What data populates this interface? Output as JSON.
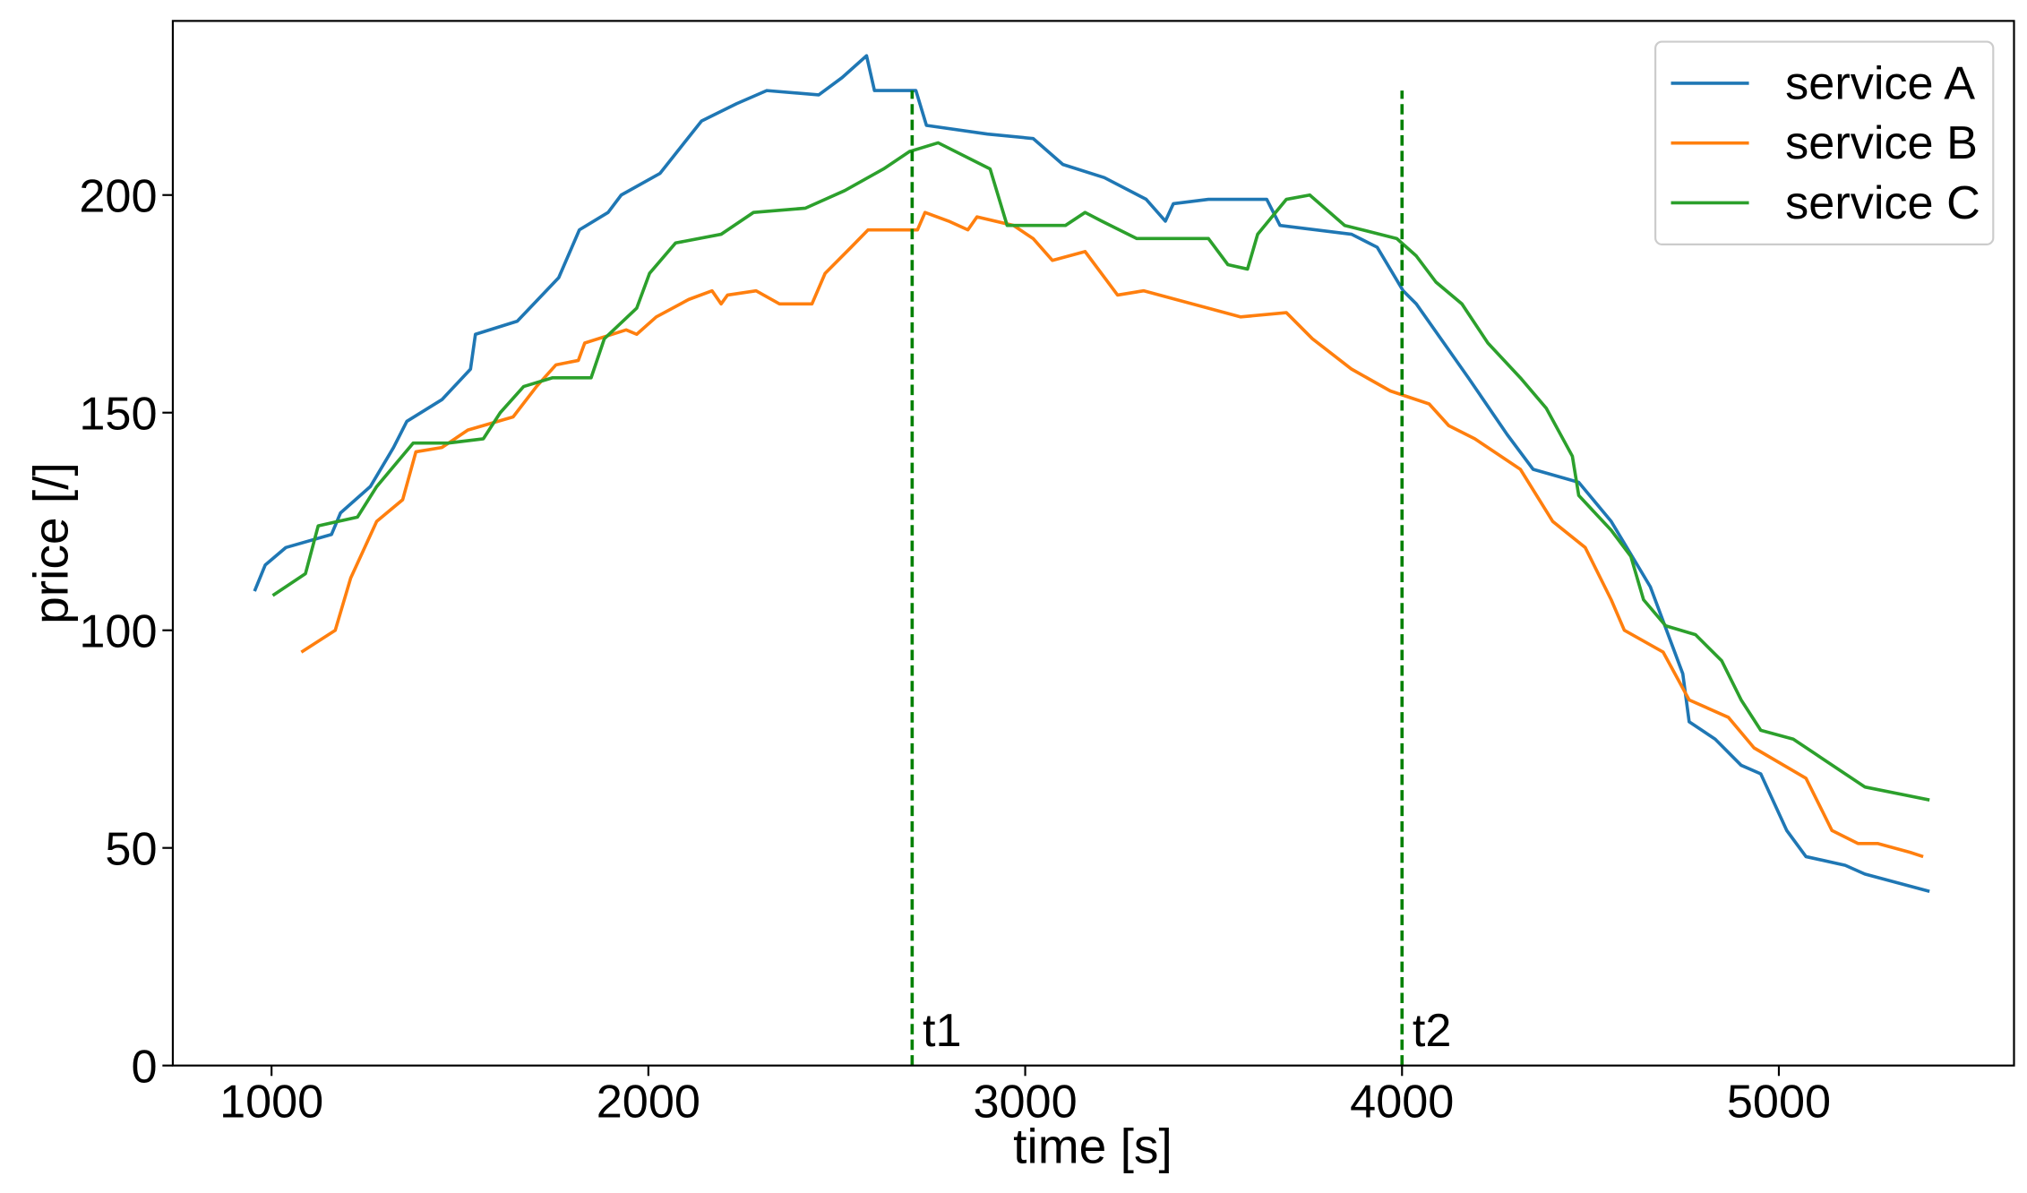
{
  "chart_data": {
    "type": "line",
    "xlabel": "time [s]",
    "ylabel": "price [/]",
    "xlim": [
      738,
      5624
    ],
    "ylim": [
      0,
      240
    ],
    "xticks": [
      1000,
      2000,
      3000,
      4000,
      5000
    ],
    "yticks": [
      0,
      50,
      100,
      150,
      200
    ],
    "legend": "upper right",
    "series": [
      {
        "name": "service A",
        "color": "#1f77b4",
        "x": [
          955,
          983,
          1038,
          1159,
          1183,
          1262,
          1324,
          1359,
          1452,
          1528,
          1541,
          1652,
          1762,
          1817,
          1893,
          1928,
          2031,
          2141,
          2234,
          2314,
          2452,
          2514,
          2579,
          2600,
          2710,
          2738,
          2900,
          3021,
          3100,
          3210,
          3321,
          3372,
          3393,
          3486,
          3641,
          3676,
          3866,
          3934,
          4003,
          4038,
          4176,
          4279,
          4348,
          4469,
          4555,
          4659,
          4745,
          4762,
          4831,
          4900,
          4952,
          5021,
          5072,
          5176,
          5228,
          5400
        ],
        "values": [
          109,
          115,
          119,
          122,
          127,
          133,
          142,
          148,
          153,
          160,
          168,
          171,
          181,
          192,
          196,
          200,
          205,
          217,
          221,
          224,
          223,
          227,
          232,
          224,
          224,
          216,
          214,
          213,
          207,
          204,
          199,
          194,
          198,
          199,
          199,
          193,
          191,
          188,
          178,
          175,
          158,
          145,
          137,
          134,
          125,
          110,
          90,
          79,
          75,
          69,
          67,
          54,
          48,
          46,
          44,
          40
        ]
      },
      {
        "name": "service B",
        "color": "#ff7f0e",
        "x": [
          1079,
          1169,
          1210,
          1279,
          1348,
          1383,
          1452,
          1521,
          1641,
          1703,
          1755,
          1814,
          1831,
          1941,
          1969,
          2021,
          2107,
          2169,
          2193,
          2210,
          2286,
          2348,
          2434,
          2469,
          2538,
          2583,
          2659,
          2714,
          2734,
          2797,
          2848,
          2872,
          2969,
          3021,
          3072,
          3159,
          3245,
          3314,
          3400,
          3486,
          3572,
          3693,
          3762,
          3866,
          3969,
          4072,
          4124,
          4193,
          4314,
          4400,
          4486,
          4555,
          4590,
          4693,
          4762,
          4866,
          4934,
          5072,
          5141,
          5210,
          5262,
          5348,
          5383
        ],
        "values": [
          95,
          100,
          112,
          125,
          130,
          141,
          142,
          146,
          149,
          156,
          161,
          162,
          166,
          169,
          168,
          172,
          176,
          178,
          175,
          177,
          178,
          175,
          175,
          182,
          188,
          192,
          192,
          192,
          196,
          194,
          192,
          195,
          193,
          190,
          185,
          187,
          177,
          178,
          176,
          174,
          172,
          173,
          167,
          160,
          155,
          152,
          147,
          144,
          137,
          125,
          119,
          107,
          100,
          95,
          84,
          80,
          73,
          66,
          54,
          51,
          51,
          49,
          48
        ]
      },
      {
        "name": "service C",
        "color": "#2ca02c",
        "x": [
          1003,
          1090,
          1124,
          1228,
          1279,
          1376,
          1469,
          1562,
          1607,
          1669,
          1745,
          1848,
          1883,
          1969,
          2003,
          2072,
          2193,
          2279,
          2417,
          2521,
          2624,
          2693,
          2769,
          2907,
          2952,
          3107,
          3159,
          3203,
          3296,
          3486,
          3538,
          3590,
          3617,
          3693,
          3755,
          3848,
          3986,
          4038,
          4090,
          4159,
          4228,
          4314,
          4383,
          4452,
          4469,
          4555,
          4607,
          4641,
          4700,
          4779,
          4848,
          4900,
          4952,
          5038,
          5090,
          5228,
          5400
        ],
        "values": [
          108,
          113,
          124,
          126,
          133,
          143,
          143,
          144,
          150,
          156,
          158,
          158,
          167,
          174,
          182,
          189,
          191,
          196,
          197,
          201,
          206,
          210,
          212,
          206,
          193,
          193,
          196,
          194,
          190,
          190,
          184,
          183,
          191,
          199,
          200,
          193,
          190,
          186,
          180,
          175,
          166,
          158,
          151,
          140,
          131,
          123,
          117,
          107,
          101,
          99,
          93,
          84,
          77,
          75,
          72,
          64,
          61
        ]
      }
    ],
    "annotations": [
      {
        "x": 2700,
        "label": "t1"
      },
      {
        "x": 4000,
        "label": "t2"
      }
    ]
  }
}
